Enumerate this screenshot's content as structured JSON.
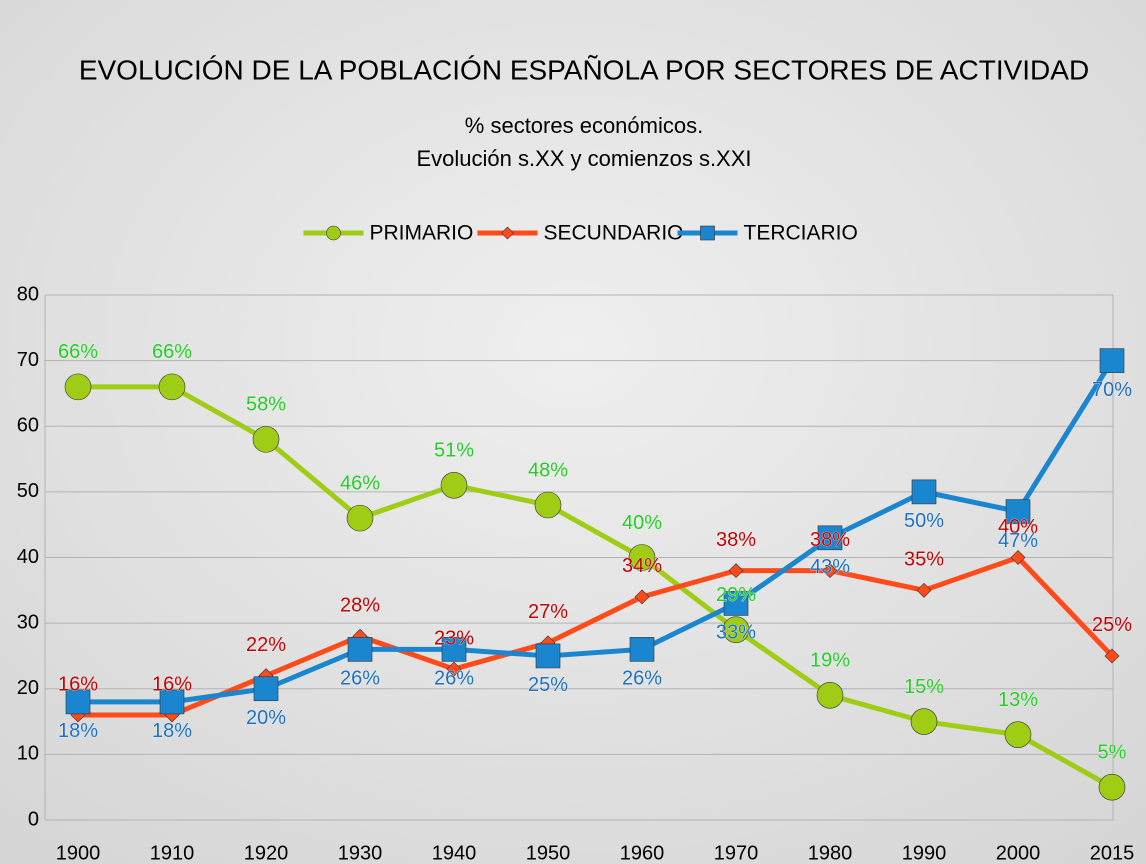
{
  "chart_data": {
    "type": "line",
    "title": "EVOLUCIÓN DE LA POBLACIÓN ESPAÑOLA POR SECTORES DE ACTIVIDAD",
    "subtitle": [
      "% sectores económicos.",
      "Evolución s.XX y comienzos s.XXI"
    ],
    "categories": [
      "1900",
      "1910",
      "1920",
      "1930",
      "1940",
      "1950",
      "1960",
      "1970",
      "1980",
      "1990",
      "2000",
      "2015"
    ],
    "series": [
      {
        "name": "PRIMARIO",
        "color": "#9fcc14",
        "label_color": "#22cc22",
        "marker": "circle",
        "values": [
          66,
          66,
          58,
          46,
          51,
          48,
          40,
          29,
          19,
          15,
          13,
          5
        ],
        "value_labels": [
          "66%",
          "66%",
          "58%",
          "46%",
          "51%",
          "48%",
          "40%",
          "29%",
          "19%",
          "15%",
          "13%",
          "5%"
        ]
      },
      {
        "name": "SECUNDARIO",
        "color": "#ff4a1a",
        "label_color": "#c00000",
        "marker": "diamond",
        "values": [
          16,
          16,
          22,
          28,
          23,
          27,
          34,
          38,
          38,
          35,
          40,
          25
        ],
        "value_labels": [
          "16%",
          "16%",
          "22%",
          "28%",
          "23%",
          "27%",
          "34%",
          "38%",
          "38%",
          "35%",
          "40%",
          "25%"
        ]
      },
      {
        "name": "TERCIARIO",
        "color": "#1a86d0",
        "label_color": "#1a6fc0",
        "marker": "square",
        "values": [
          18,
          18,
          20,
          26,
          26,
          25,
          26,
          33,
          43,
          50,
          47,
          70
        ],
        "value_labels": [
          "18%",
          "18%",
          "20%",
          "26%",
          "26%",
          "25%",
          "26%",
          "33%",
          "43%",
          "50%",
          "47%",
          "70%"
        ]
      }
    ],
    "ylim": [
      0,
      80
    ],
    "yticks": [
      0,
      10,
      20,
      30,
      40,
      50,
      60,
      70,
      80
    ],
    "grid": true,
    "legend": "top"
  }
}
